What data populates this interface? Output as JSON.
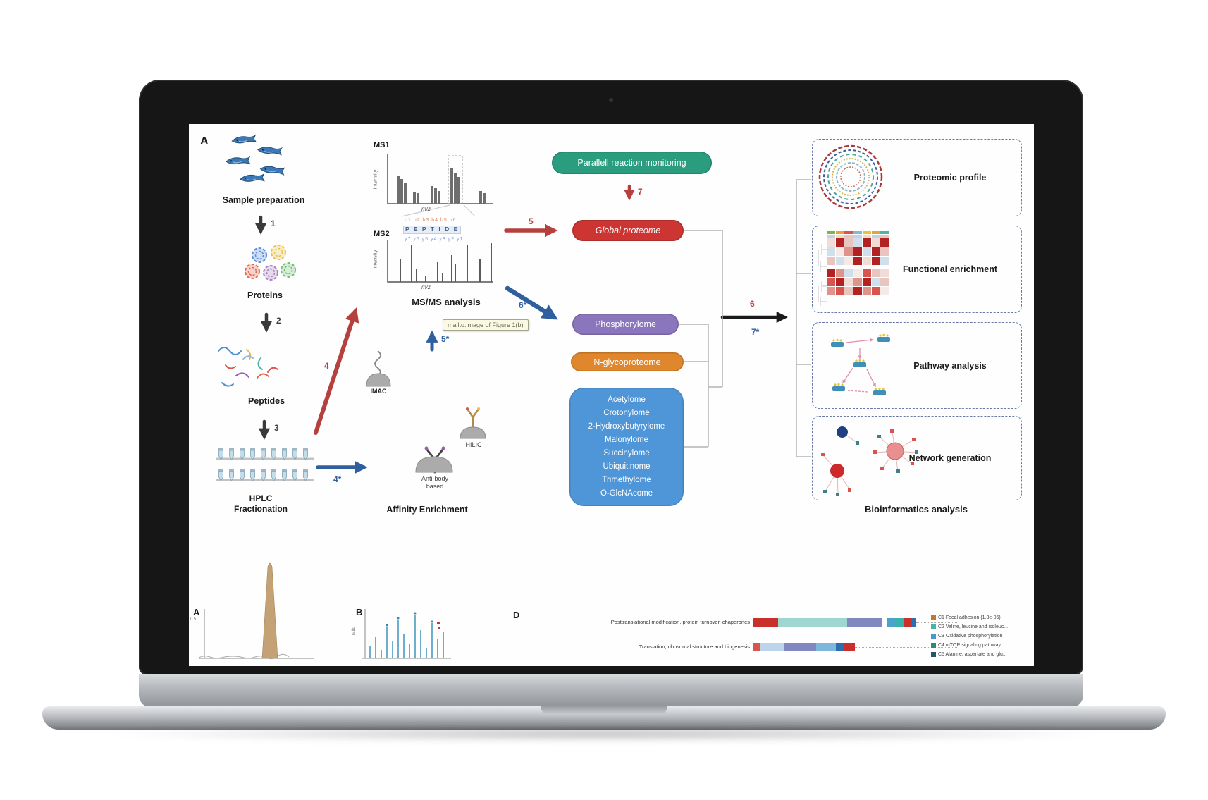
{
  "figure": {
    "panel_label": "A",
    "sample_prep_label": "Sample preparation",
    "proteins_label": "Proteins",
    "peptides_label": "Peptides",
    "hplc_line1": "HPLC",
    "hplc_line2": "Fractionation",
    "steps": {
      "s1": "1",
      "s2": "2",
      "s3": "3",
      "s4": "4",
      "s4s": "4*",
      "s5": "5",
      "s5s": "5*",
      "s6": "6",
      "s6s": "6*",
      "s7": "7",
      "s7s": "7*"
    },
    "ms": {
      "ms1": "MS1",
      "ms2": "MS2",
      "intensity": "Intensity",
      "mz": "m/z",
      "b_ions": "b1 b2 b3 b4 b5 b6",
      "peptide": "P E P T I D E",
      "y_ions": "y7 y6 y5 y4 y3 y2 y1",
      "title": "MS/MS analysis"
    },
    "tooltip_text": "mailto:image of Figure 1(b)",
    "affinity": {
      "imac": "IMAC",
      "antibody1": "Anti-body",
      "antibody2": "based",
      "hilic": "HILIC",
      "title": "Affinity Enrichment"
    },
    "pills": {
      "prm": {
        "label": "Parallell reaction monitoring",
        "color": "#2a9d7f"
      },
      "global": {
        "label": "Global proteome",
        "color": "#cc3531"
      },
      "phospho": {
        "label": "Phosphorylome",
        "color": "#8a76bd"
      },
      "glyco": {
        "label": "N-glycoproteome",
        "color": "#e0862c"
      }
    },
    "ptm_box": {
      "color": "#4f96d8",
      "items": [
        "Acetylome",
        "Crotonylome",
        "2-Hydroxybutyrylome",
        "Malonylome",
        "Succinylome",
        "Ubiquitinome",
        "Trimethylome",
        "O-GlcNAcome"
      ]
    },
    "output_panels": [
      {
        "label": "Proteomic profile"
      },
      {
        "label": "Functional enrichment"
      },
      {
        "label": "Pathway analysis"
      },
      {
        "label": "Network generation"
      }
    ],
    "outputs_title": "Bioinformatics analysis",
    "heatmap": {
      "anno": [
        [
          "#7ab648",
          "#e8a33d",
          "#d9534f",
          "#8ab4d8",
          "#e8c33d",
          "#e8a33d",
          "#48b6a8"
        ],
        [
          "#bcd5ea",
          "#f0e0c0",
          "#e8c5bf",
          "#bcd5ea",
          "#f0e0c0",
          "#bcd5ea",
          "#e8c5bf"
        ]
      ],
      "rows": [
        [
          "#f2dcd8",
          "#b22222",
          "#e8c5bf",
          "#cfe0ec",
          "#b22222",
          "#f2dcd8",
          "#b22222"
        ],
        [
          "#cfe0ec",
          "#f6eae6",
          "#e0938a",
          "#b22222",
          "#cfe0ec",
          "#b22222",
          "#e8c5bf"
        ],
        [
          "#e8c5bf",
          "#cfe0ec",
          "#f6eae6",
          "#b22222",
          "#f2dcd8",
          "#b22222",
          "#cfe0ec"
        ],
        [
          "#b22222",
          "#e0938a",
          "#cfe0ec",
          "#f6eae6",
          "#d9534f",
          "#e8c5bf",
          "#f2dcd8"
        ],
        [
          "#d9534f",
          "#b22222",
          "#f2dcd8",
          "#e0938a",
          "#b22222",
          "#cfe0ec",
          "#e8c5bf"
        ],
        [
          "#e0938a",
          "#d9534f",
          "#e8c5bf",
          "#b22222",
          "#e0938a",
          "#d9534f",
          "#f6eae6"
        ]
      ]
    }
  },
  "bottom_figure": {
    "panel_a": "A",
    "panel_b": "B",
    "panel_d": "D",
    "a_tick": "0.5",
    "b_axis": "ratio",
    "d_rows": [
      {
        "label": "Posttranslational modification, protein turnover, chaperones",
        "segments": [
          [
            "#c9302c",
            36
          ],
          [
            "#9fd6cf",
            98
          ],
          [
            "#7f88bf",
            50
          ],
          [
            "#ffffff",
            6
          ],
          [
            "#4aa3c8",
            13
          ],
          [
            "#38b2aa",
            12
          ],
          [
            "#c9302c",
            9
          ],
          [
            "#2b6fb0",
            8
          ]
        ]
      },
      {
        "label": "Translation, ribosomal structure and biogenesis",
        "segments": [
          [
            "#d9534f",
            10
          ],
          [
            "#bcd5ea",
            34
          ],
          [
            "#7f88bf",
            46
          ],
          [
            "#7db8dc",
            28
          ],
          [
            "#2b6fb0",
            12
          ],
          [
            "#c9302c",
            15
          ]
        ]
      }
    ],
    "legend": [
      {
        "color": "#c07a2e",
        "label": "C1 Focal adhesion (1.3e-06)"
      },
      {
        "color": "#45b5a9",
        "label": "C2 Valine, leucine and isoleuc..."
      },
      {
        "color": "#4a97cf",
        "label": "C3 Oxidative phosphorylation"
      },
      {
        "color": "#2e8b72",
        "label": "C4 mTOR signaling pathway"
      },
      {
        "color": "#27556c",
        "label": "C5 Alanine, aspartate and glu..."
      }
    ]
  }
}
